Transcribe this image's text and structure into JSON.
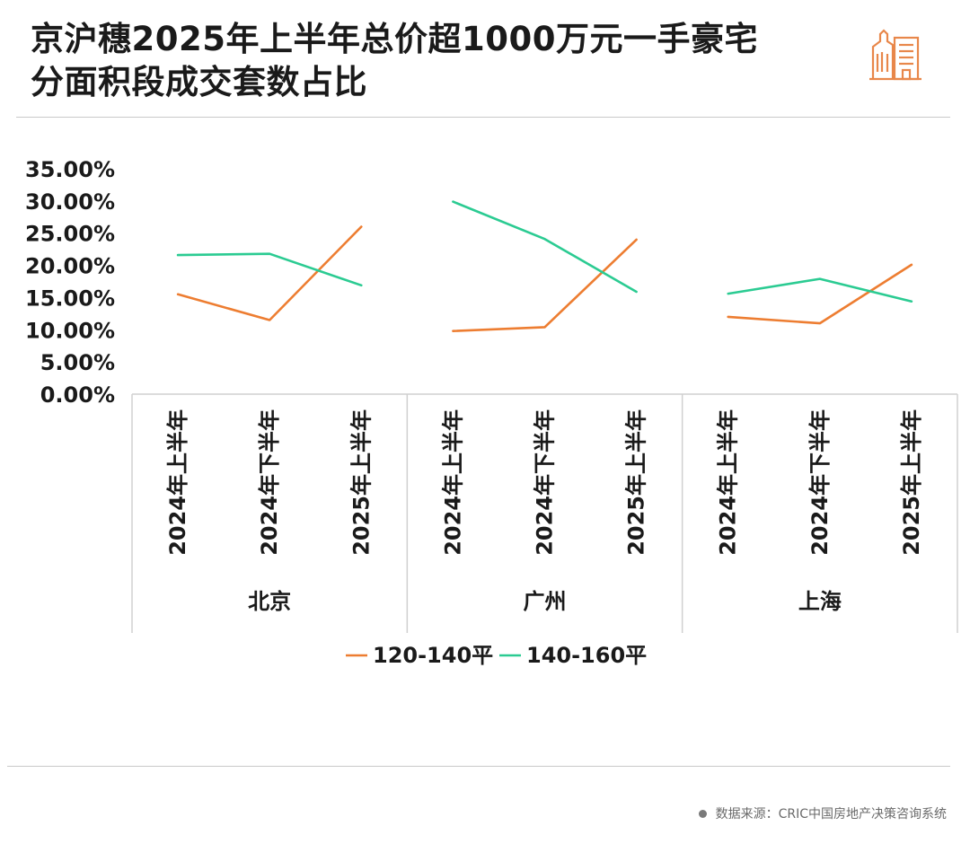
{
  "title_lines": [
    "京沪穗2025年上半年总价超1000万元一手豪宅",
    "分面积段成交套数占比"
  ],
  "icon": "building-icon",
  "source_text": "数据来源：CRIC中国房地产决策咨询系统",
  "colors": {
    "series_1": "#ED7D31",
    "series_2": "#2BCB92",
    "axis": "#d0d0d0",
    "text": "#1a1a1a"
  },
  "chart_data": {
    "type": "line",
    "title": "京沪穗2025年上半年总价超1000万元一手豪宅分面积段成交套数占比",
    "groups": [
      {
        "name": "北京",
        "periods": [
          "2024年上半年",
          "2024年下半年",
          "2025年上半年"
        ]
      },
      {
        "name": "广州",
        "periods": [
          "2024年上半年",
          "2024年下半年",
          "2025年上半年"
        ]
      },
      {
        "name": "上海",
        "periods": [
          "2024年上半年",
          "2024年下半年",
          "2025年上半年"
        ]
      }
    ],
    "series": [
      {
        "name": "120-140平",
        "color": "#ED7D31",
        "values": [
          [
            15.5,
            11.5,
            26.0
          ],
          [
            9.8,
            10.4,
            24.0
          ],
          [
            12.0,
            11.0,
            20.1
          ]
        ]
      },
      {
        "name": "140-160平",
        "color": "#2BCB92",
        "values": [
          [
            21.6,
            21.8,
            16.9
          ],
          [
            29.9,
            24.1,
            15.9
          ],
          [
            15.6,
            17.9,
            14.4
          ]
        ]
      }
    ],
    "ylim": [
      0,
      35
    ],
    "yticks": [
      "35.00%",
      "30.00%",
      "25.00%",
      "20.00%",
      "15.00%",
      "10.00%",
      "5.00%",
      "0.00%"
    ],
    "ytick_values": [
      35,
      30,
      25,
      20,
      15,
      10,
      5,
      0
    ],
    "legend": "bottom-center",
    "grid": false
  }
}
